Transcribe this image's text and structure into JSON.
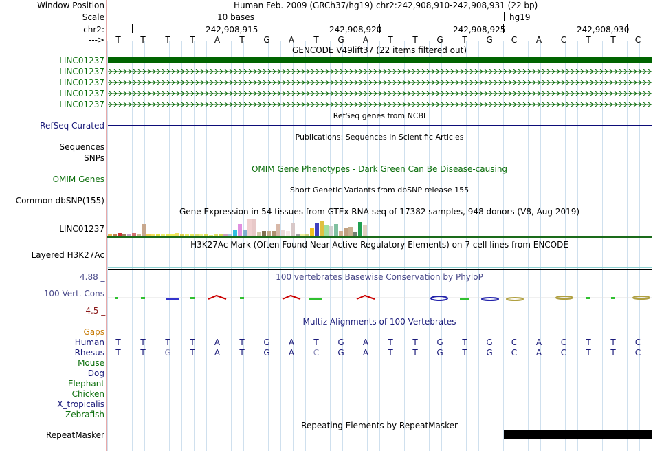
{
  "header": {
    "window_position_label": "Window Position",
    "scale_label": "Scale",
    "chr_label": "chr2:",
    "arrow_label": "--->",
    "assembly_title": "Human Feb. 2009 (GRCh37/hg19)",
    "position": "chr2:242,908,910-242,908,931 (22 bp)",
    "scale_text": "10 bases",
    "db": "hg19",
    "ticks": [
      "242,908,915",
      "242,908,920",
      "242,908,925",
      "242,908,930"
    ]
  },
  "sequence": [
    "T",
    "T",
    "T",
    "T",
    "A",
    "T",
    "G",
    "A",
    "T",
    "G",
    "A",
    "T",
    "T",
    "G",
    "T",
    "G",
    "C",
    "A",
    "C",
    "T",
    "T",
    "C"
  ],
  "gencode": {
    "title": "GENCODE V49lift37 (22 items filtered out)",
    "genes": [
      "LINC01237",
      "LINC01237",
      "LINC01237",
      "LINC01237",
      "LINC01237"
    ],
    "color": "#006400"
  },
  "refseq": {
    "title": "RefSeq genes from NCBI",
    "label": "RefSeq Curated",
    "color": "#0c0c78"
  },
  "publications": {
    "title": "Publications: Sequences in Scientific Articles",
    "label": "Sequences"
  },
  "snps_label": "SNPs",
  "omim": {
    "title": "OMIM Gene Phenotypes - Dark Green Can Be Disease-causing",
    "label": "OMIM Genes"
  },
  "dbsnp": {
    "title": "Short Genetic Variants from dbSNP release 155",
    "label": "Common dbSNP(155)"
  },
  "gtex": {
    "title": "Gene Expression in 54 tissues from GTEx RNA-seq of 17382 samples, 948 donors (V8, Aug 2019)",
    "label": "LINC01237",
    "levels": [
      0.15,
      0.2,
      0.25,
      0.2,
      0.15,
      0.25,
      0.2,
      0.9,
      0.2,
      0.2,
      0.15,
      0.2,
      0.2,
      0.2,
      0.25,
      0.2,
      0.2,
      0.2,
      0.15,
      0.2,
      0.15,
      0.1,
      0.15,
      0.15,
      0.2,
      0.2,
      0.45,
      0.9,
      0.45,
      1.25,
      1.3,
      0.35,
      0.4,
      0.4,
      0.4,
      0.9,
      0.5,
      0.4,
      0.95,
      0.2,
      0.15,
      0.2,
      0.6,
      1.0,
      1.1,
      0.8,
      0.75,
      0.9,
      0.4,
      0.6,
      0.7,
      0.3,
      1.05,
      0.8
    ],
    "colors": [
      "#e8b34e",
      "#c08050",
      "#cc3333",
      "#a07a5a",
      "#c8a0c8",
      "#d27070",
      "#d0b890",
      "#c8a88e",
      "#f0d050",
      "#f5e060",
      "#e0e040",
      "#f0f070",
      "#e8e850",
      "#eeee55",
      "#f0e060",
      "#e0d050",
      "#eeee66",
      "#e8e860",
      "#e0e070",
      "#f0f080",
      "#dddd55",
      "#eeee77",
      "#e0e060",
      "#d8d850",
      "#d0a0c0",
      "#a0c8e0",
      "#30c0e0",
      "#e090e0",
      "#80b0d0",
      "#f0d0d0",
      "#e8c8c8",
      "#d0c8a8",
      "#807050",
      "#c0a888",
      "#b09070",
      "#d8b8a8",
      "#e8d8d8",
      "#f5e8e8",
      "#d8c8c8",
      "#a0a0a0",
      "#f0f0a0",
      "#d0d080",
      "#f0c020",
      "#4040c0",
      "#e0c040",
      "#a0e0a0",
      "#d0d0d0",
      "#80c0a0",
      "#d0b090",
      "#c0a080",
      "#c8b090",
      "#708070",
      "#20a050",
      "#e0d0c0"
    ]
  },
  "h3k27ac": {
    "title": "H3K27Ac Mark (Often Found Near Active Regulatory Elements) on 7 cell lines from ENCODE",
    "label": "Layered H3K27Ac"
  },
  "cons": {
    "title": "100 vertebrates Basewise Conservation by PhyloP",
    "label": "100 Vert. Cons",
    "max": "4.88 _",
    "min": "-4.5 _"
  },
  "multiz": {
    "title": "Multiz Alignments of 100 Vertebrates",
    "gaps_label": "Gaps",
    "species": [
      "Human",
      "Rhesus",
      "Mouse",
      "Dog",
      "Elephant",
      "Chicken",
      "X_tropicalis",
      "Zebrafish"
    ],
    "human_seq": [
      "T",
      "T",
      "T",
      "T",
      "A",
      "T",
      "G",
      "A",
      "T",
      "G",
      "A",
      "T",
      "T",
      "G",
      "T",
      "G",
      "C",
      "A",
      "C",
      "T",
      "T",
      "C"
    ],
    "rhesus_seq": [
      "T",
      "T",
      "G",
      "T",
      "A",
      "T",
      "G",
      "A",
      "C",
      "G",
      "A",
      "T",
      "T",
      "G",
      "T",
      "G",
      "C",
      "A",
      "C",
      "T",
      "T",
      "C"
    ],
    "rhesus_diff": [
      2,
      8
    ]
  },
  "repeatmasker": {
    "title": "Repeating Elements by RepeatMasker",
    "label": "RepeatMasker"
  }
}
